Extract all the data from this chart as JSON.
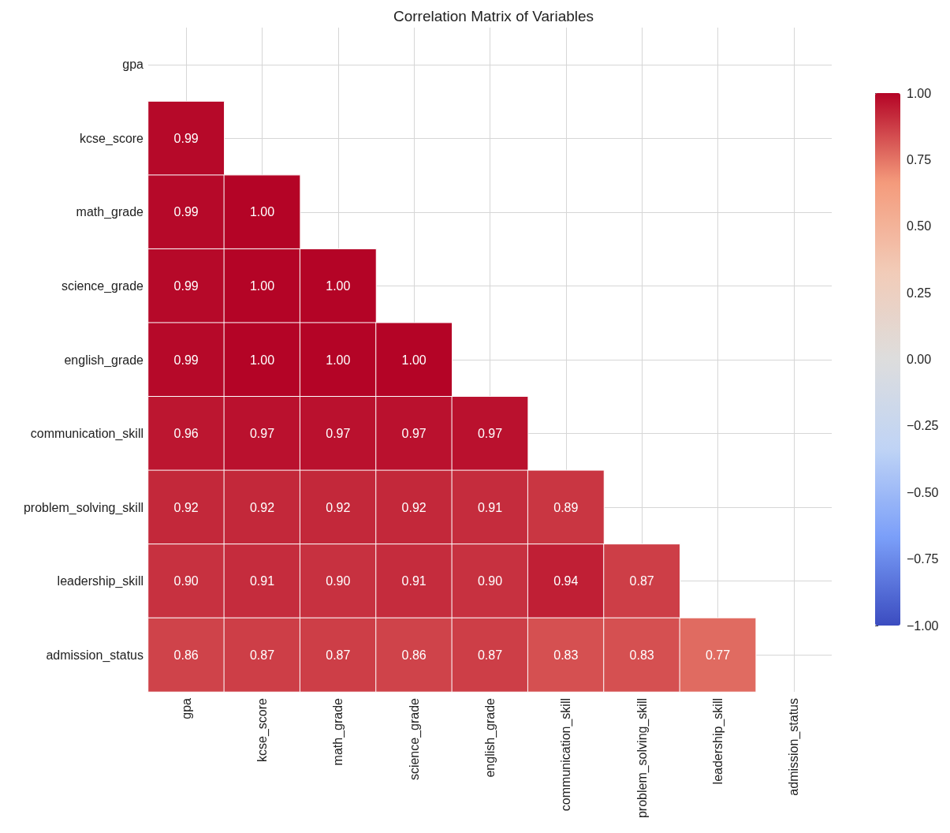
{
  "chart_data": {
    "type": "heatmap",
    "title": "Correlation Matrix of Variables",
    "categories": [
      "gpa",
      "kcse_score",
      "math_grade",
      "science_grade",
      "english_grade",
      "communication_skill",
      "problem_solving_skill",
      "leadership_skill",
      "admission_status"
    ],
    "y_categories": [
      "gpa",
      "kcse_score",
      "math_grade",
      "science_grade",
      "english_grade",
      "communication_skill",
      "problem_solving_skill",
      "leadership_skill",
      "admission_status"
    ],
    "cells": [
      [
        null,
        null,
        null,
        null,
        null,
        null,
        null,
        null,
        null
      ],
      [
        0.99,
        null,
        null,
        null,
        null,
        null,
        null,
        null,
        null
      ],
      [
        0.99,
        1.0,
        null,
        null,
        null,
        null,
        null,
        null,
        null
      ],
      [
        0.99,
        1.0,
        1.0,
        null,
        null,
        null,
        null,
        null,
        null
      ],
      [
        0.99,
        1.0,
        1.0,
        1.0,
        null,
        null,
        null,
        null,
        null
      ],
      [
        0.96,
        0.97,
        0.97,
        0.97,
        0.97,
        null,
        null,
        null,
        null
      ],
      [
        0.92,
        0.92,
        0.92,
        0.92,
        0.91,
        0.89,
        null,
        null,
        null
      ],
      [
        0.9,
        0.91,
        0.9,
        0.91,
        0.9,
        0.94,
        0.87,
        null,
        null
      ],
      [
        0.86,
        0.87,
        0.87,
        0.86,
        0.87,
        0.83,
        0.83,
        0.77,
        null
      ]
    ],
    "cell_labels": [
      [
        null,
        null,
        null,
        null,
        null,
        null,
        null,
        null,
        null
      ],
      [
        "0.99",
        null,
        null,
        null,
        null,
        null,
        null,
        null,
        null
      ],
      [
        "0.99",
        "1.00",
        null,
        null,
        null,
        null,
        null,
        null,
        null
      ],
      [
        "0.99",
        "1.00",
        "1.00",
        null,
        null,
        null,
        null,
        null,
        null
      ],
      [
        "0.99",
        "1.00",
        "1.00",
        "1.00",
        null,
        null,
        null,
        null,
        null
      ],
      [
        "0.96",
        "0.97",
        "0.97",
        "0.97",
        "0.97",
        null,
        null,
        null,
        null
      ],
      [
        "0.92",
        "0.92",
        "0.92",
        "0.92",
        "0.91",
        "0.89",
        null,
        null,
        null
      ],
      [
        "0.90",
        "0.91",
        "0.90",
        "0.91",
        "0.90",
        "0.94",
        "0.87",
        null,
        null
      ],
      [
        "0.86",
        "0.87",
        "0.87",
        "0.86",
        "0.87",
        "0.83",
        "0.83",
        "0.77",
        null
      ]
    ],
    "clim": [
      -1,
      1
    ],
    "cticks": [
      {
        "value": -1,
        "label": "−1.00"
      },
      {
        "value": -0.75,
        "label": "−0.75"
      },
      {
        "value": -0.5,
        "label": "−0.50"
      },
      {
        "value": -0.25,
        "label": "−0.25"
      },
      {
        "value": 0,
        "label": "0.00"
      },
      {
        "value": 0.25,
        "label": "0.25"
      },
      {
        "value": 0.5,
        "label": "0.50"
      },
      {
        "value": 0.75,
        "label": "0.75"
      },
      {
        "value": 1,
        "label": "1.00"
      }
    ],
    "data_labels": true,
    "grid": true
  }
}
